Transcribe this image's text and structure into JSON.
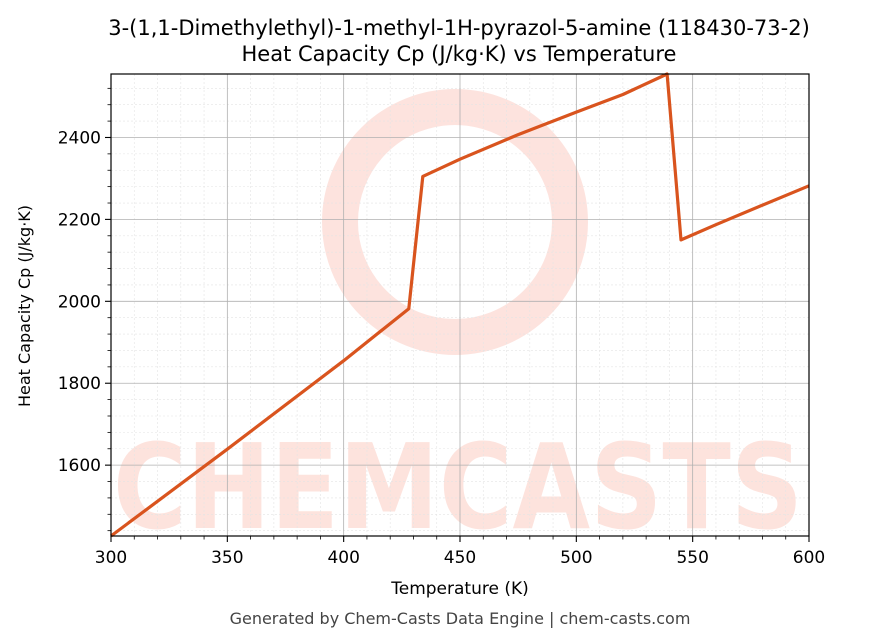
{
  "chart_data": {
    "type": "line",
    "title": "3-(1,1-Dimethylethyl)-1-methyl-1H-pyrazol-5-amine (118430-73-2)",
    "subtitle": "Heat Capacity Cp (J/kg·K) vs Temperature",
    "xlabel": "Temperature (K)",
    "ylabel": "Heat Capacity Cp (J/kg·K)",
    "xlim": [
      300,
      600
    ],
    "ylim": [
      1427,
      2555
    ],
    "xticks": [
      300,
      350,
      400,
      450,
      500,
      550,
      600
    ],
    "yticks": [
      1600,
      1800,
      2000,
      2200,
      2400
    ],
    "grid": true,
    "line_color": "#d9541e",
    "series": [
      {
        "x": [
          300,
          350,
          400,
          428,
          434,
          450,
          475,
          500,
          520,
          539,
          545,
          560,
          580,
          600
        ],
        "values": [
          1427,
          1639,
          1855,
          1982,
          2305,
          2347,
          2407,
          2462,
          2505,
          2555,
          2150,
          2187,
          2235,
          2282
        ]
      }
    ]
  },
  "watermark": {
    "text": "CHEMCASTS",
    "color": "#fde0da"
  },
  "footer": "Generated by Chem-Casts Data Engine | chem-casts.com"
}
